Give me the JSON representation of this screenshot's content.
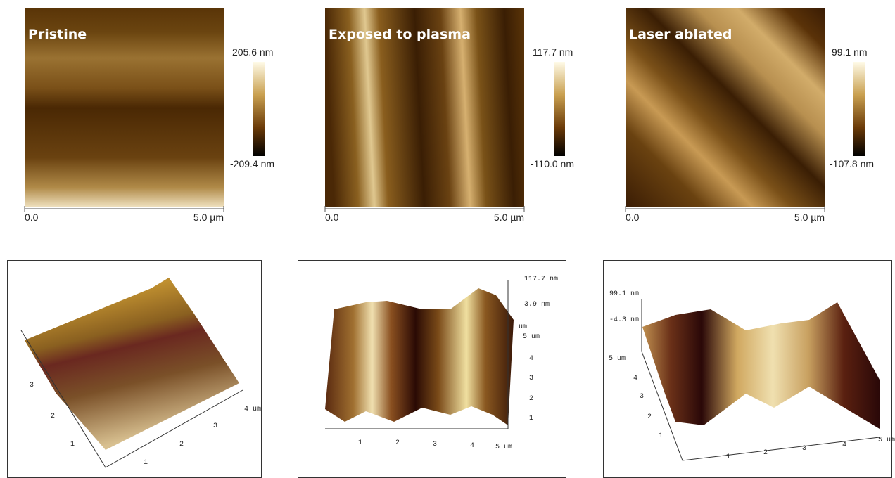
{
  "panels_2d": [
    {
      "label": "Pristine",
      "scale_max": "205.6 nm",
      "scale_min": "-209.4 nm",
      "x_start": "0.0",
      "x_end": "5.0 µm"
    },
    {
      "label": "Exposed to plasma",
      "scale_max": "117.7 nm",
      "scale_min": "-110.0 nm",
      "x_start": "0.0",
      "x_end": "5.0 µm"
    },
    {
      "label": "Laser ablated",
      "scale_max": "99.1 nm",
      "scale_min": "-107.8 nm",
      "x_start": "0.0",
      "x_end": "5.0 µm"
    }
  ],
  "panels_3d": [
    {
      "ticks": [
        "3",
        "2",
        "1",
        "1",
        "2",
        "3",
        "4 um"
      ]
    },
    {
      "ticks": [
        "117.7 nm",
        "3.9 nm",
        "um",
        "5 um",
        "4",
        "3",
        "2",
        "1",
        "1",
        "2",
        "3",
        "4",
        "5 um"
      ]
    },
    {
      "ticks": [
        "99.1 nm",
        "-4.3 nm",
        "5 um",
        "4",
        "3",
        "2",
        "1",
        "1",
        "2",
        "3",
        "4",
        "5 um"
      ]
    }
  ]
}
